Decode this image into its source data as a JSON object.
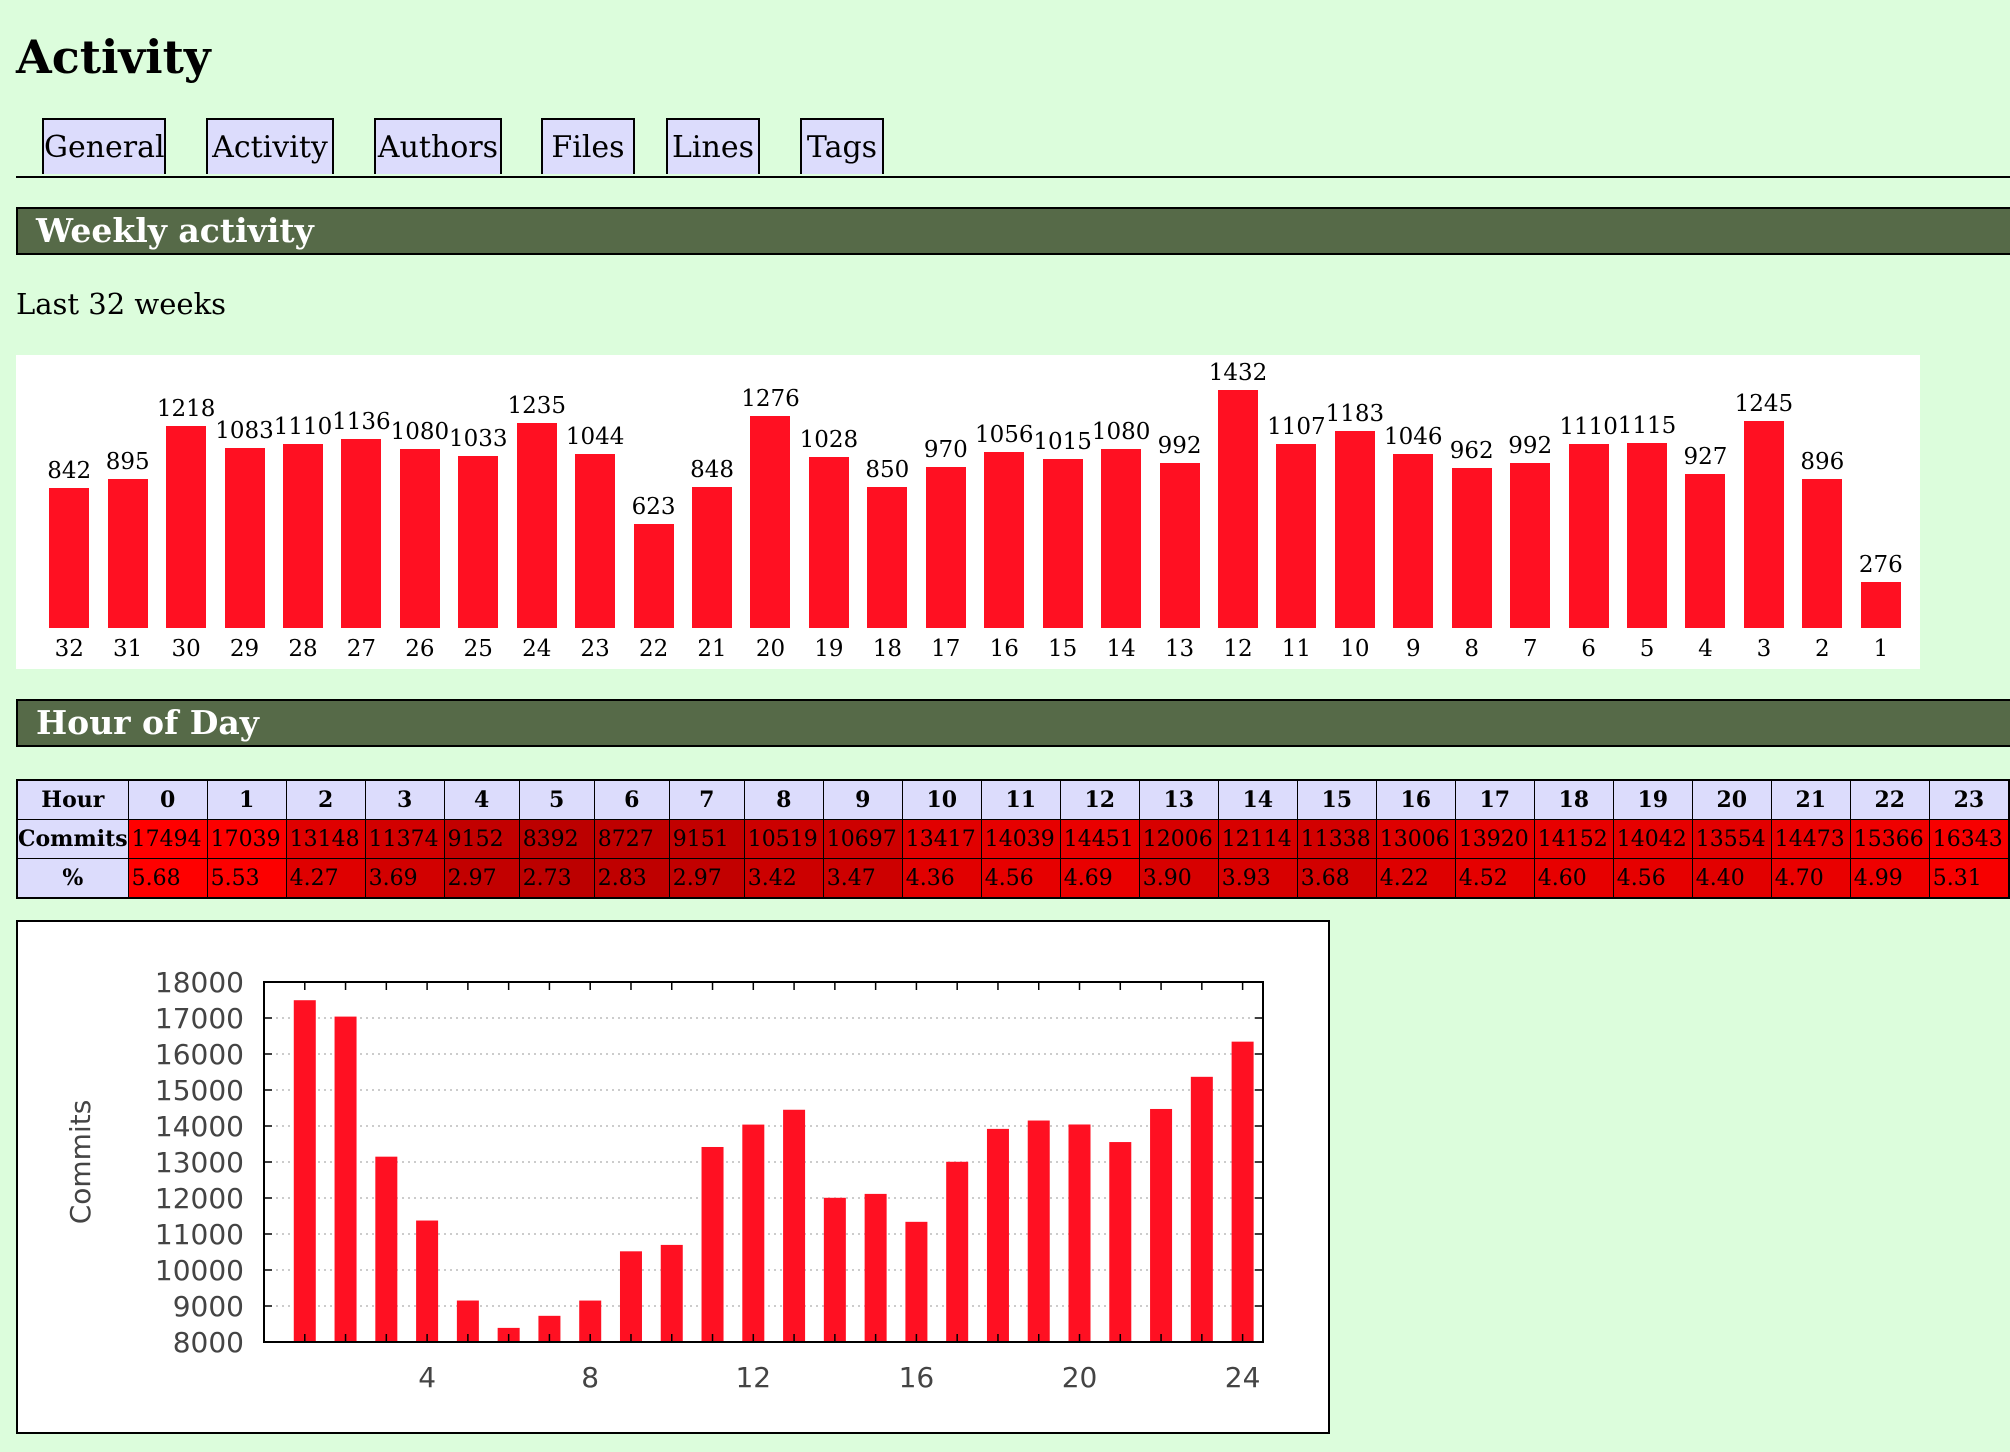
{
  "page_title": "Activity",
  "tabs": [
    "General",
    "Activity",
    "Authors",
    "Files",
    "Lines",
    "Tags"
  ],
  "weekly": {
    "heading": "Weekly activity",
    "subtitle": "Last 32 weeks",
    "weeks": [
      "32",
      "31",
      "30",
      "29",
      "28",
      "27",
      "26",
      "25",
      "24",
      "23",
      "22",
      "21",
      "20",
      "19",
      "18",
      "17",
      "16",
      "15",
      "14",
      "13",
      "12",
      "11",
      "10",
      "9",
      "8",
      "7",
      "6",
      "5",
      "4",
      "3",
      "2",
      "1"
    ],
    "values": [
      842,
      895,
      1218,
      1083,
      1110,
      1136,
      1080,
      1033,
      1235,
      1044,
      623,
      848,
      1276,
      1028,
      850,
      970,
      1056,
      1015,
      1080,
      992,
      1432,
      1107,
      1183,
      1046,
      962,
      992,
      1110,
      1115,
      927,
      1245,
      896,
      276
    ]
  },
  "hour_of_day": {
    "heading": "Hour of Day",
    "row_labels": {
      "hour": "Hour",
      "commits": "Commits",
      "percent": "%"
    },
    "hours": [
      "0",
      "1",
      "2",
      "3",
      "4",
      "5",
      "6",
      "7",
      "8",
      "9",
      "10",
      "11",
      "12",
      "13",
      "14",
      "15",
      "16",
      "17",
      "18",
      "19",
      "20",
      "21",
      "22",
      "23"
    ],
    "commits": [
      "17494",
      "17039",
      "13148",
      "11374",
      "9152",
      "8392",
      "8727",
      "9151",
      "10519",
      "10697",
      "13417",
      "14039",
      "14451",
      "12006",
      "12114",
      "11338",
      "13006",
      "13920",
      "14152",
      "14042",
      "13554",
      "14473",
      "15366",
      "16343"
    ],
    "percent": [
      "5.68",
      "5.53",
      "4.27",
      "3.69",
      "2.97",
      "2.73",
      "2.83",
      "2.97",
      "3.42",
      "3.47",
      "4.36",
      "4.56",
      "4.69",
      "3.90",
      "3.93",
      "3.68",
      "4.22",
      "4.52",
      "4.60",
      "4.56",
      "4.40",
      "4.70",
      "4.99",
      "5.31"
    ]
  },
  "chart_data": [
    {
      "type": "bar",
      "title": "",
      "xlabel": "",
      "ylabel": "",
      "categories": [
        "32",
        "31",
        "30",
        "29",
        "28",
        "27",
        "26",
        "25",
        "24",
        "23",
        "22",
        "21",
        "20",
        "19",
        "18",
        "17",
        "16",
        "15",
        "14",
        "13",
        "12",
        "11",
        "10",
        "9",
        "8",
        "7",
        "6",
        "5",
        "4",
        "3",
        "2",
        "1"
      ],
      "values": [
        842,
        895,
        1218,
        1083,
        1110,
        1136,
        1080,
        1033,
        1235,
        1044,
        623,
        848,
        1276,
        1028,
        850,
        970,
        1056,
        1015,
        1080,
        992,
        1432,
        1107,
        1183,
        1046,
        962,
        992,
        1110,
        1115,
        927,
        1245,
        896,
        276
      ],
      "data_labels": true,
      "grid": false,
      "color": "#ff1022"
    },
    {
      "type": "bar",
      "title": "",
      "xlabel": "",
      "ylabel": "Commits",
      "x": [
        1,
        2,
        3,
        4,
        5,
        6,
        7,
        8,
        9,
        10,
        11,
        12,
        13,
        14,
        15,
        16,
        17,
        18,
        19,
        20,
        21,
        22,
        23,
        24
      ],
      "values": [
        17494,
        17039,
        13148,
        11374,
        9152,
        8392,
        8727,
        9151,
        10519,
        10697,
        13417,
        14039,
        14451,
        12006,
        12114,
        11338,
        13006,
        13920,
        14152,
        14042,
        13554,
        14473,
        15366,
        16343
      ],
      "xlim": [
        0,
        24.5
      ],
      "ylim": [
        8000,
        18000
      ],
      "x_ticks": [
        4,
        8,
        12,
        16,
        20,
        24
      ],
      "y_ticks": [
        8000,
        9000,
        10000,
        11000,
        12000,
        13000,
        14000,
        15000,
        16000,
        17000,
        18000
      ],
      "grid": true,
      "color": "#ff1022"
    }
  ]
}
